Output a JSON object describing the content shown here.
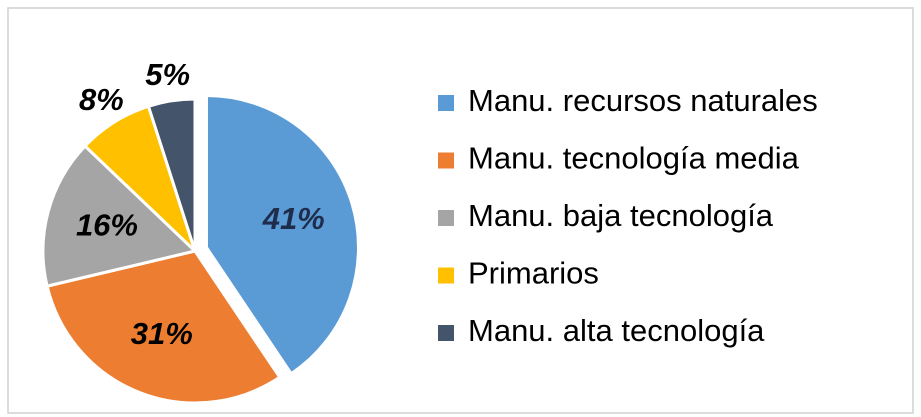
{
  "chart_data": {
    "type": "pie",
    "categories": [
      "Manu. recursos naturales",
      "Manu. tecnología media",
      "Manu. baja tecnología",
      "Primarios",
      "Manu. alta tecnología"
    ],
    "values": [
      41,
      31,
      16,
      8,
      5
    ],
    "value_labels": [
      "41%",
      "31%",
      "16%",
      "8%",
      "5%"
    ],
    "colors": [
      "#5b9bd5",
      "#ed7d31",
      "#a5a5a5",
      "#ffc000",
      "#44546a"
    ],
    "legend": "right"
  }
}
